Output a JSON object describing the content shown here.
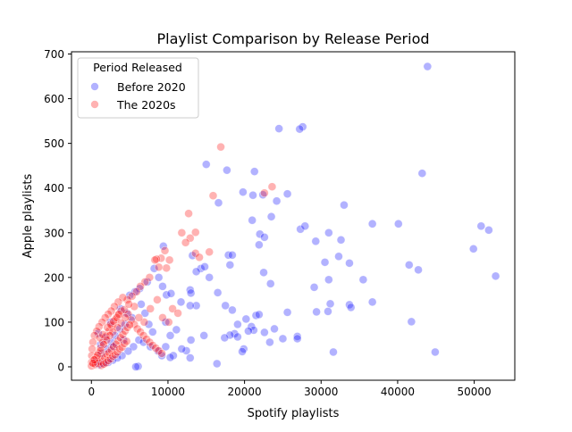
{
  "chart_data": {
    "type": "scatter",
    "title": "Playlist Comparison by Release Period",
    "xlabel": "Spotify playlists",
    "ylabel": "Apple playlists",
    "xlim": [
      -2600,
      55300
    ],
    "ylim": [
      -30,
      705
    ],
    "xticks": [
      0,
      10000,
      20000,
      30000,
      40000,
      50000
    ],
    "yticks": [
      0,
      100,
      200,
      300,
      400,
      500,
      600,
      700
    ],
    "legend": {
      "title": "Period Released",
      "placement": "top-left"
    },
    "series": [
      {
        "name": "Before 2020",
        "color": "#0000ff",
        "points": [
          [
            43900,
            672
          ],
          [
            24500,
            533
          ],
          [
            27600,
            537
          ],
          [
            27200,
            532
          ],
          [
            15000,
            453
          ],
          [
            17700,
            440
          ],
          [
            21300,
            437
          ],
          [
            43200,
            433
          ],
          [
            19800,
            391
          ],
          [
            22400,
            385
          ],
          [
            21100,
            384
          ],
          [
            25600,
            387
          ],
          [
            24200,
            371
          ],
          [
            16600,
            367
          ],
          [
            33000,
            362
          ],
          [
            23500,
            336
          ],
          [
            21000,
            328
          ],
          [
            36700,
            320
          ],
          [
            40100,
            320
          ],
          [
            27300,
            308
          ],
          [
            27900,
            315
          ],
          [
            22000,
            297
          ],
          [
            22600,
            290
          ],
          [
            21900,
            273
          ],
          [
            31000,
            300
          ],
          [
            29300,
            281
          ],
          [
            32600,
            284
          ],
          [
            50900,
            315
          ],
          [
            51900,
            306
          ],
          [
            49900,
            264
          ],
          [
            17900,
            250
          ],
          [
            18400,
            250
          ],
          [
            13200,
            249
          ],
          [
            32300,
            247
          ],
          [
            30500,
            234
          ],
          [
            33700,
            232
          ],
          [
            18100,
            228
          ],
          [
            41500,
            228
          ],
          [
            42700,
            217
          ],
          [
            14300,
            220
          ],
          [
            14800,
            224
          ],
          [
            13700,
            213
          ],
          [
            22500,
            211
          ],
          [
            52800,
            203
          ],
          [
            35500,
            195
          ],
          [
            15400,
            200
          ],
          [
            31000,
            195
          ],
          [
            23400,
            186
          ],
          [
            29100,
            178
          ],
          [
            16500,
            166
          ],
          [
            12900,
            172
          ],
          [
            13000,
            165
          ],
          [
            36700,
            145
          ],
          [
            33700,
            139
          ],
          [
            33900,
            133
          ],
          [
            31200,
            141
          ],
          [
            17500,
            137
          ],
          [
            13700,
            137
          ],
          [
            12900,
            137
          ],
          [
            18400,
            127
          ],
          [
            21500,
            115
          ],
          [
            21900,
            117
          ],
          [
            25600,
            122
          ],
          [
            29400,
            123
          ],
          [
            30900,
            124
          ],
          [
            20200,
            107
          ],
          [
            41800,
            101
          ],
          [
            19100,
            95
          ],
          [
            20900,
            90
          ],
          [
            21200,
            82
          ],
          [
            20500,
            80
          ],
          [
            22600,
            77
          ],
          [
            23900,
            85
          ],
          [
            18700,
            74
          ],
          [
            18100,
            71
          ],
          [
            19100,
            67
          ],
          [
            17400,
            65
          ],
          [
            26900,
            68
          ],
          [
            26900,
            63
          ],
          [
            25000,
            63
          ],
          [
            23300,
            55
          ],
          [
            31600,
            33
          ],
          [
            44900,
            33
          ],
          [
            19900,
            40
          ],
          [
            19700,
            34
          ],
          [
            16400,
            7
          ],
          [
            14700,
            70
          ],
          [
            13000,
            60
          ],
          [
            12400,
            36
          ],
          [
            11800,
            40
          ],
          [
            9700,
            45
          ],
          [
            10700,
            25
          ],
          [
            10300,
            21
          ],
          [
            12900,
            20
          ],
          [
            10300,
            70
          ],
          [
            9700,
            100
          ],
          [
            11700,
            145
          ],
          [
            9800,
            161
          ],
          [
            10400,
            164
          ],
          [
            9300,
            180
          ],
          [
            9400,
            270
          ],
          [
            8800,
            200
          ],
          [
            8200,
            220
          ],
          [
            7300,
            190
          ],
          [
            6300,
            175
          ],
          [
            5700,
            168
          ],
          [
            5000,
            160
          ],
          [
            6500,
            140
          ],
          [
            7000,
            120
          ],
          [
            7500,
            95
          ],
          [
            8000,
            78
          ],
          [
            6200,
            60
          ],
          [
            5500,
            45
          ],
          [
            4800,
            35
          ],
          [
            4000,
            25
          ],
          [
            3400,
            20
          ],
          [
            2800,
            15
          ],
          [
            2200,
            10
          ],
          [
            1600,
            8
          ],
          [
            1000,
            5
          ],
          [
            600,
            12
          ],
          [
            1300,
            30
          ],
          [
            2100,
            40
          ],
          [
            2600,
            55
          ],
          [
            3100,
            70
          ],
          [
            3700,
            85
          ],
          [
            4400,
            95
          ],
          [
            1800,
            65
          ],
          [
            1200,
            50
          ],
          [
            900,
            75
          ],
          [
            3800,
            130
          ],
          [
            4600,
            120
          ],
          [
            5300,
            110
          ],
          [
            2500,
            100
          ],
          [
            6100,
            1
          ],
          [
            5800,
            0
          ],
          [
            8700,
            35
          ],
          [
            9200,
            25
          ],
          [
            6800,
            55
          ],
          [
            7700,
            45
          ],
          [
            11100,
            83
          ],
          [
            4200,
            60
          ],
          [
            2900,
            45
          ]
        ]
      },
      {
        "name": "The 2020s",
        "color": "#ff0000",
        "points": [
          [
            16900,
            492
          ],
          [
            23600,
            403
          ],
          [
            22600,
            389
          ],
          [
            15900,
            383
          ],
          [
            12700,
            343
          ],
          [
            13600,
            301
          ],
          [
            12900,
            288
          ],
          [
            11800,
            300
          ],
          [
            12300,
            278
          ],
          [
            13600,
            254
          ],
          [
            15400,
            257
          ],
          [
            14100,
            245
          ],
          [
            9600,
            260
          ],
          [
            9100,
            243
          ],
          [
            8500,
            241
          ],
          [
            8300,
            239
          ],
          [
            10200,
            239
          ],
          [
            9800,
            221
          ],
          [
            8800,
            223
          ],
          [
            7600,
            200
          ],
          [
            7000,
            190
          ],
          [
            6400,
            180
          ],
          [
            5900,
            168
          ],
          [
            5300,
            158
          ],
          [
            4700,
            150
          ],
          [
            4100,
            155
          ],
          [
            3500,
            145
          ],
          [
            3000,
            135
          ],
          [
            2600,
            125
          ],
          [
            2200,
            118
          ],
          [
            1800,
            110
          ],
          [
            1400,
            100
          ],
          [
            1000,
            90
          ],
          [
            700,
            80
          ],
          [
            400,
            70
          ],
          [
            200,
            55
          ],
          [
            100,
            40
          ],
          [
            50,
            25
          ],
          [
            30,
            10
          ],
          [
            10,
            2
          ],
          [
            300,
            15
          ],
          [
            600,
            20
          ],
          [
            900,
            30
          ],
          [
            1200,
            42
          ],
          [
            1500,
            55
          ],
          [
            1900,
            68
          ],
          [
            2300,
            80
          ],
          [
            2700,
            92
          ],
          [
            3100,
            105
          ],
          [
            3500,
            115
          ],
          [
            3900,
            125
          ],
          [
            4300,
            128
          ],
          [
            4800,
            118
          ],
          [
            5200,
            105
          ],
          [
            5600,
            95
          ],
          [
            6000,
            85
          ],
          [
            6400,
            78
          ],
          [
            6800,
            70
          ],
          [
            7200,
            62
          ],
          [
            7600,
            55
          ],
          [
            8000,
            48
          ],
          [
            8400,
            42
          ],
          [
            8800,
            36
          ],
          [
            9200,
            30
          ],
          [
            500,
            5
          ],
          [
            800,
            8
          ],
          [
            1100,
            12
          ],
          [
            1400,
            18
          ],
          [
            1700,
            22
          ],
          [
            2000,
            28
          ],
          [
            2300,
            32
          ],
          [
            2600,
            38
          ],
          [
            2900,
            45
          ],
          [
            3200,
            50
          ],
          [
            3500,
            58
          ],
          [
            3800,
            65
          ],
          [
            4100,
            72
          ],
          [
            4400,
            80
          ],
          [
            4700,
            88
          ],
          [
            5000,
            94
          ],
          [
            1300,
            3
          ],
          [
            1600,
            6
          ],
          [
            1900,
            9
          ],
          [
            2200,
            14
          ],
          [
            2500,
            18
          ],
          [
            2800,
            24
          ],
          [
            3100,
            27
          ],
          [
            3400,
            33
          ],
          [
            3700,
            40
          ],
          [
            4000,
            44
          ],
          [
            4300,
            52
          ],
          [
            4600,
            57
          ],
          [
            1100,
            65
          ],
          [
            1500,
            72
          ],
          [
            2100,
            88
          ],
          [
            2500,
            95
          ],
          [
            2900,
            102
          ],
          [
            3300,
            110
          ],
          [
            3600,
            118
          ],
          [
            7700,
            130
          ],
          [
            8600,
            150
          ],
          [
            9300,
            110
          ],
          [
            10100,
            100
          ],
          [
            10600,
            130
          ],
          [
            11300,
            120
          ],
          [
            6900,
            100
          ],
          [
            6200,
            110
          ],
          [
            5600,
            135
          ],
          [
            4900,
            140
          ],
          [
            4400,
            110
          ],
          [
            3900,
            98
          ],
          [
            3400,
            88
          ],
          [
            2800,
            78
          ],
          [
            2400,
            70
          ],
          [
            2000,
            60
          ],
          [
            1600,
            50
          ],
          [
            1200,
            36
          ],
          [
            800,
            26
          ],
          [
            400,
            16
          ],
          [
            200,
            8
          ]
        ]
      }
    ]
  }
}
